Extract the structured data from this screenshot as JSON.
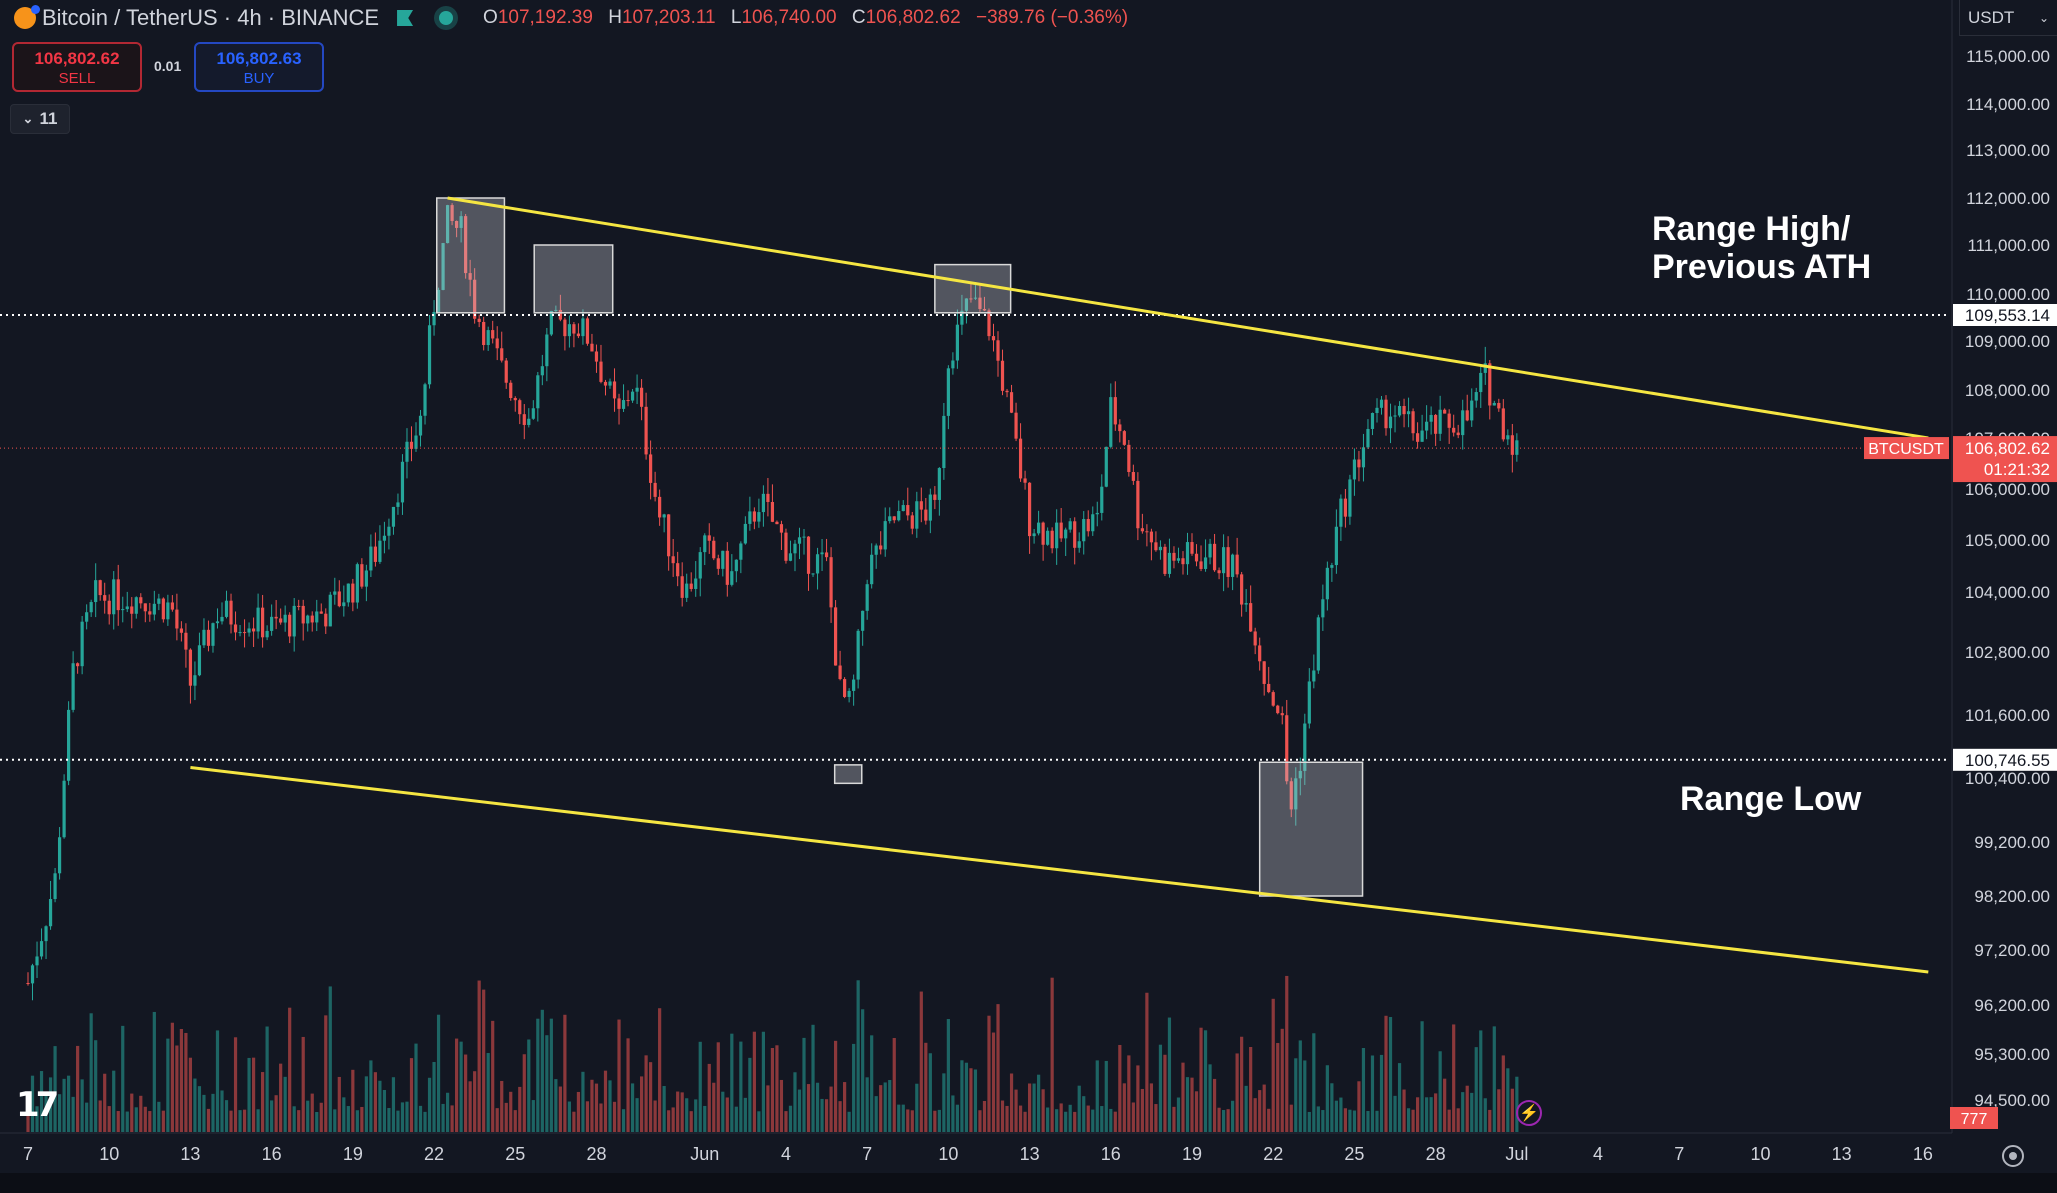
{
  "header": {
    "symbol": "Bitcoin / TetherUS · 4h · BINANCE",
    "open_label": "O",
    "open": "107,192.39",
    "high_label": "H",
    "high": "107,203.11",
    "low_label": "L",
    "low": "106,740.00",
    "close_label": "C",
    "close": "106,802.62",
    "change": "−389.76 (−0.36%)"
  },
  "trade": {
    "sell_price": "106,802.62",
    "sell_label": "SELL",
    "spread": "0.01",
    "buy_price": "106,802.63",
    "buy_label": "BUY"
  },
  "indicators_toggle": "11",
  "currency": "USDT",
  "currency_icon": "chevron-down-icon",
  "annotations": {
    "range_high": "Range High/\nPrevious ATH",
    "range_low": "Range Low"
  },
  "volume_badge": "777",
  "colors": {
    "background": "#131722",
    "up": "#26a69a",
    "down": "#ef5350",
    "trendline": "#f5e642",
    "grid_text": "#d1d4dc"
  },
  "chart_data": {
    "type": "candlestick",
    "symbol": "BTCUSDT",
    "interval": "4h",
    "price_axis": {
      "ticks": [
        {
          "label": "115,000.00",
          "value": 115000
        },
        {
          "label": "114,000.00",
          "value": 114000
        },
        {
          "label": "113,000.00",
          "value": 113000
        },
        {
          "label": "112,000.00",
          "value": 112000
        },
        {
          "label": "111,000.00",
          "value": 111000
        },
        {
          "label": "110,000.00",
          "value": 110000
        },
        {
          "label": "109,000.00",
          "value": 109000
        },
        {
          "label": "108,000.00",
          "value": 108000
        },
        {
          "label": "107,000.00",
          "value": 107000
        },
        {
          "label": "106,000.00",
          "value": 106000
        },
        {
          "label": "105,000.00",
          "value": 105000
        },
        {
          "label": "104,000.00",
          "value": 104000
        },
        {
          "label": "102,800.00",
          "value": 102800
        },
        {
          "label": "101,600.00",
          "value": 101600
        },
        {
          "label": "100,400.00",
          "value": 100400
        },
        {
          "label": "99,200.00",
          "value": 99200
        },
        {
          "label": "98,200.00",
          "value": 98200
        },
        {
          "label": "97,200.00",
          "value": 97200
        },
        {
          "label": "96,200.00",
          "value": 96200
        },
        {
          "label": "95,300.00",
          "value": 95300
        },
        {
          "label": "94,500.00",
          "value": 94500
        }
      ]
    },
    "time_axis": {
      "labels": [
        {
          "label": "7",
          "day": 0
        },
        {
          "label": "10",
          "day": 3
        },
        {
          "label": "13",
          "day": 6
        },
        {
          "label": "16",
          "day": 9
        },
        {
          "label": "19",
          "day": 12
        },
        {
          "label": "22",
          "day": 15
        },
        {
          "label": "25",
          "day": 18
        },
        {
          "label": "28",
          "day": 21
        },
        {
          "label": "Jun",
          "day": 25
        },
        {
          "label": "4",
          "day": 28
        },
        {
          "label": "7",
          "day": 31
        },
        {
          "label": "10",
          "day": 34
        },
        {
          "label": "13",
          "day": 37
        },
        {
          "label": "16",
          "day": 40
        },
        {
          "label": "19",
          "day": 43
        },
        {
          "label": "22",
          "day": 46
        },
        {
          "label": "25",
          "day": 49
        },
        {
          "label": "28",
          "day": 52
        },
        {
          "label": "Jul",
          "day": 55
        },
        {
          "label": "4",
          "day": 58
        },
        {
          "label": "7",
          "day": 61
        },
        {
          "label": "10",
          "day": 64
        },
        {
          "label": "13",
          "day": 67
        },
        {
          "label": "16",
          "day": 70
        }
      ]
    },
    "price_path": [
      {
        "day": 0,
        "price": 96600
      },
      {
        "day": 1,
        "price": 98500
      },
      {
        "day": 1.7,
        "price": 102600
      },
      {
        "day": 2.5,
        "price": 103900
      },
      {
        "day": 4,
        "price": 103900
      },
      {
        "day": 5.3,
        "price": 103700
      },
      {
        "day": 6,
        "price": 102200
      },
      {
        "day": 7,
        "price": 103600
      },
      {
        "day": 9,
        "price": 103300
      },
      {
        "day": 11,
        "price": 103600
      },
      {
        "day": 12,
        "price": 104100
      },
      {
        "day": 12.8,
        "price": 104700
      },
      {
        "day": 13.5,
        "price": 105800
      },
      {
        "day": 14.5,
        "price": 107400
      },
      {
        "day": 15,
        "price": 109800
      },
      {
        "day": 15.5,
        "price": 111500
      },
      {
        "day": 16,
        "price": 111300
      },
      {
        "day": 16.5,
        "price": 109700
      },
      {
        "day": 17.5,
        "price": 108400
      },
      {
        "day": 18.5,
        "price": 107400
      },
      {
        "day": 19.3,
        "price": 109300
      },
      {
        "day": 20.2,
        "price": 109400
      },
      {
        "day": 20.8,
        "price": 109000
      },
      {
        "day": 21.8,
        "price": 107400
      },
      {
        "day": 22.4,
        "price": 108200
      },
      {
        "day": 23.3,
        "price": 105500
      },
      {
        "day": 24.3,
        "price": 104000
      },
      {
        "day": 25,
        "price": 104800
      },
      {
        "day": 26,
        "price": 104300
      },
      {
        "day": 27,
        "price": 105800
      },
      {
        "day": 28,
        "price": 104900
      },
      {
        "day": 29.5,
        "price": 104500
      },
      {
        "day": 30,
        "price": 102000
      },
      {
        "day": 30.4,
        "price": 101700
      },
      {
        "day": 31,
        "price": 104400
      },
      {
        "day": 32,
        "price": 105400
      },
      {
        "day": 33.5,
        "price": 105600
      },
      {
        "day": 34,
        "price": 108700
      },
      {
        "day": 34.8,
        "price": 109900
      },
      {
        "day": 35.5,
        "price": 109300
      },
      {
        "day": 36,
        "price": 108200
      },
      {
        "day": 37,
        "price": 105400
      },
      {
        "day": 38,
        "price": 105000
      },
      {
        "day": 39.5,
        "price": 105400
      },
      {
        "day": 40,
        "price": 107600
      },
      {
        "day": 40.5,
        "price": 107000
      },
      {
        "day": 41,
        "price": 105500
      },
      {
        "day": 42,
        "price": 104600
      },
      {
        "day": 43.5,
        "price": 104700
      },
      {
        "day": 44.5,
        "price": 104500
      },
      {
        "day": 45.2,
        "price": 103500
      },
      {
        "day": 45.7,
        "price": 102300
      },
      {
        "day": 46.3,
        "price": 101600
      },
      {
        "day": 46.6,
        "price": 99700
      },
      {
        "day": 47,
        "price": 100800
      },
      {
        "day": 47.8,
        "price": 103800
      },
      {
        "day": 48.5,
        "price": 105500
      },
      {
        "day": 49.5,
        "price": 107200
      },
      {
        "day": 50.3,
        "price": 107600
      },
      {
        "day": 51.3,
        "price": 107100
      },
      {
        "day": 52.5,
        "price": 107300
      },
      {
        "day": 53.2,
        "price": 107400
      },
      {
        "day": 53.8,
        "price": 108300
      },
      {
        "day": 54.4,
        "price": 107400
      },
      {
        "day": 55,
        "price": 106800
      }
    ],
    "last_price": 106802.62,
    "last_price_label": "106,802.62",
    "countdown": "01:21:32",
    "symbol_tag": "BTCUSDT",
    "levels": [
      {
        "price": 109553.14,
        "label": "109,553.14",
        "style": "dotted"
      },
      {
        "price": 100746.55,
        "label": 100746.55,
        "style": "dotted"
      }
    ],
    "level_labels": [
      "109,553.14",
      "100,746.55"
    ],
    "trendlines": [
      {
        "from": {
          "day": 15.5,
          "price": 112000
        },
        "to": {
          "day": 70.2,
          "price": 107000
        }
      },
      {
        "from": {
          "day": 6,
          "price": 100600
        },
        "to": {
          "day": 70.2,
          "price": 96800
        }
      }
    ],
    "boxes": [
      {
        "day_from": 15.1,
        "day_to": 17.6,
        "price_from": 109600,
        "price_to": 112000
      },
      {
        "day_from": 18.7,
        "day_to": 21.6,
        "price_from": 109600,
        "price_to": 111000
      },
      {
        "day_from": 33.5,
        "day_to": 36.3,
        "price_from": 109600,
        "price_to": 110600
      },
      {
        "day_from": 29.8,
        "day_to": 30.8,
        "price_from": 100300,
        "price_to": 100650
      },
      {
        "day_from": 45.5,
        "day_to": 49.3,
        "price_from": 98200,
        "price_to": 100700
      }
    ]
  }
}
